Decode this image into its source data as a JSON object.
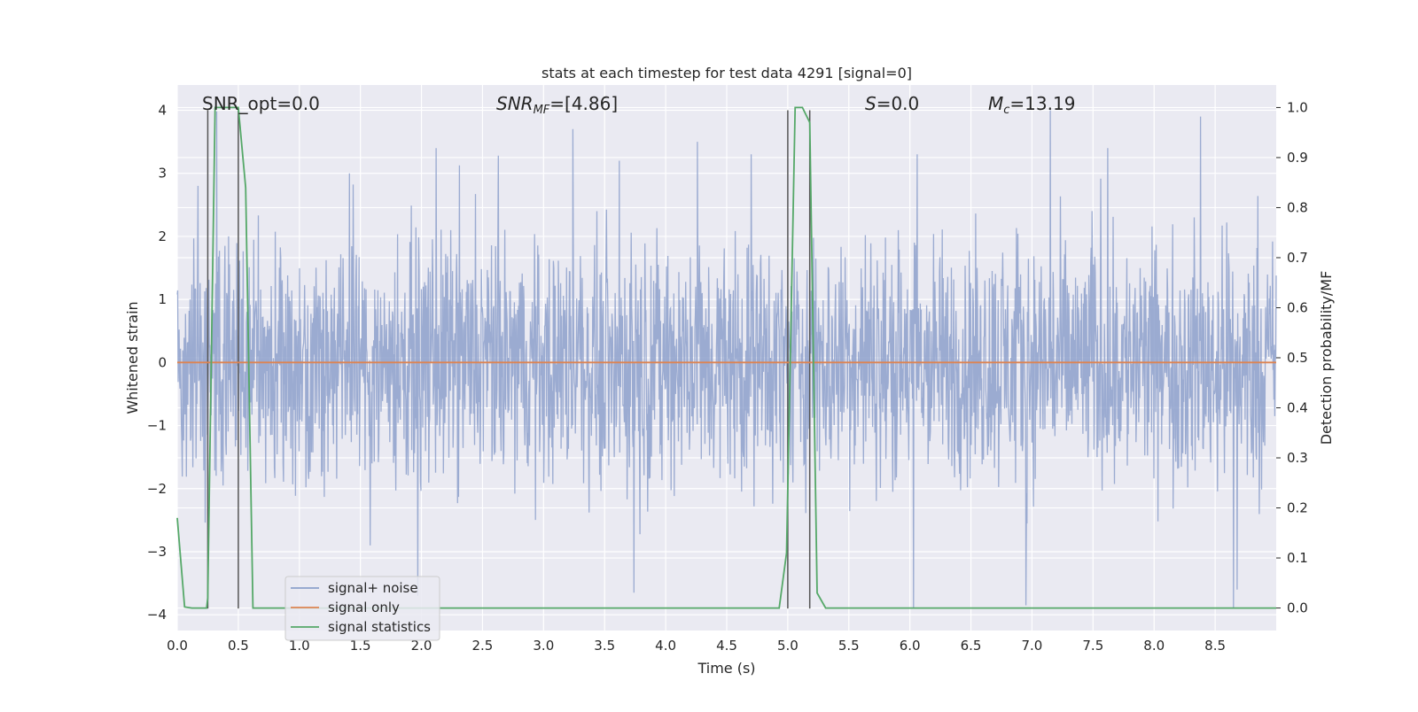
{
  "chart_data": {
    "type": "line",
    "title": "stats at each timestep for test data 4291 [signal=0]",
    "xlabel": "Time (s)",
    "ylabel": "Whitened strain",
    "ylabel_right": "Detection probability/MF",
    "xlim": [
      0.0,
      9.0
    ],
    "ylim": [
      -4.25,
      4.4
    ],
    "ylim_right": [
      -0.045,
      1.045
    ],
    "xticks": [
      0.0,
      0.5,
      1.0,
      1.5,
      2.0,
      2.5,
      3.0,
      3.5,
      4.0,
      4.5,
      5.0,
      5.5,
      6.0,
      6.5,
      7.0,
      7.5,
      8.0,
      8.5
    ],
    "xtick_labels": [
      "0.0",
      "0.5",
      "1.0",
      "1.5",
      "2.0",
      "2.5",
      "3.0",
      "3.5",
      "4.0",
      "4.5",
      "5.0",
      "5.5",
      "6.0",
      "6.5",
      "7.0",
      "7.5",
      "8.0",
      "8.5"
    ],
    "yticks": [
      4,
      3,
      2,
      1,
      0,
      -1,
      -2,
      -3,
      -4
    ],
    "ytick_labels": [
      "4",
      "3",
      "2",
      "1",
      "0",
      "−1",
      "−2",
      "−3",
      "−4"
    ],
    "yticks_right": [
      1.0,
      0.9,
      0.8,
      0.7,
      0.6,
      0.5,
      0.4,
      0.3,
      0.2,
      0.1,
      0.0
    ],
    "ytick_labels_right": [
      "1.0",
      "0.9",
      "0.8",
      "0.7",
      "0.6",
      "0.5",
      "0.4",
      "0.3",
      "0.2",
      "0.1",
      "0.0"
    ],
    "grid": true,
    "legend_position": "lower-left",
    "annotations": [
      {
        "text": "SNR_opt=0.0"
      },
      {
        "text": "SNR_MF=[4.86]"
      },
      {
        "text": "S=0.0"
      },
      {
        "text": "M_c=13.19"
      }
    ],
    "vertical_markers_x": [
      0.25,
      0.5,
      5.0,
      5.18
    ],
    "series": [
      {
        "name": "signal+ noise",
        "axis": "left",
        "color": "#8da0cb",
        "kind": "noise",
        "typical_range": [
          -1.5,
          1.6
        ],
        "extreme_peaks": [
          {
            "x": 0.17,
            "y": 2.8
          },
          {
            "x": 1.41,
            "y": 3.0
          },
          {
            "x": 1.58,
            "y": -2.9
          },
          {
            "x": 1.97,
            "y": -3.7
          },
          {
            "x": 2.12,
            "y": 3.4
          },
          {
            "x": 3.24,
            "y": 3.7
          },
          {
            "x": 3.62,
            "y": 3.2
          },
          {
            "x": 3.74,
            "y": -3.65
          },
          {
            "x": 4.26,
            "y": 3.5
          },
          {
            "x": 4.7,
            "y": 3.3
          },
          {
            "x": 6.06,
            "y": 3.3
          },
          {
            "x": 6.03,
            "y": -3.9
          },
          {
            "x": 6.95,
            "y": -3.85
          },
          {
            "x": 7.15,
            "y": 4.0
          },
          {
            "x": 7.62,
            "y": 3.4
          },
          {
            "x": 8.38,
            "y": 3.9
          },
          {
            "x": 8.65,
            "y": -3.9
          },
          {
            "x": 8.68,
            "y": -3.6
          }
        ]
      },
      {
        "name": "signal only",
        "axis": "left",
        "color": "#dd8452",
        "x": [
          0.0,
          9.0
        ],
        "y": [
          0.0,
          0.0
        ]
      },
      {
        "name": "signal statistics",
        "axis": "right",
        "color": "#55a868",
        "x": [
          0.0,
          0.06,
          0.12,
          0.24,
          0.25,
          0.31,
          0.38,
          0.44,
          0.5,
          0.56,
          0.62,
          0.65,
          4.93,
          4.99,
          5.06,
          5.12,
          5.18,
          5.24,
          5.31,
          9.0
        ],
        "y": [
          0.18,
          0.002,
          0.0,
          0.0,
          0.02,
          1.0,
          1.0,
          1.0,
          1.0,
          0.84,
          0.0,
          0.0,
          0.0,
          0.11,
          1.0,
          1.0,
          0.97,
          0.03,
          0.0,
          0.0
        ]
      }
    ]
  }
}
